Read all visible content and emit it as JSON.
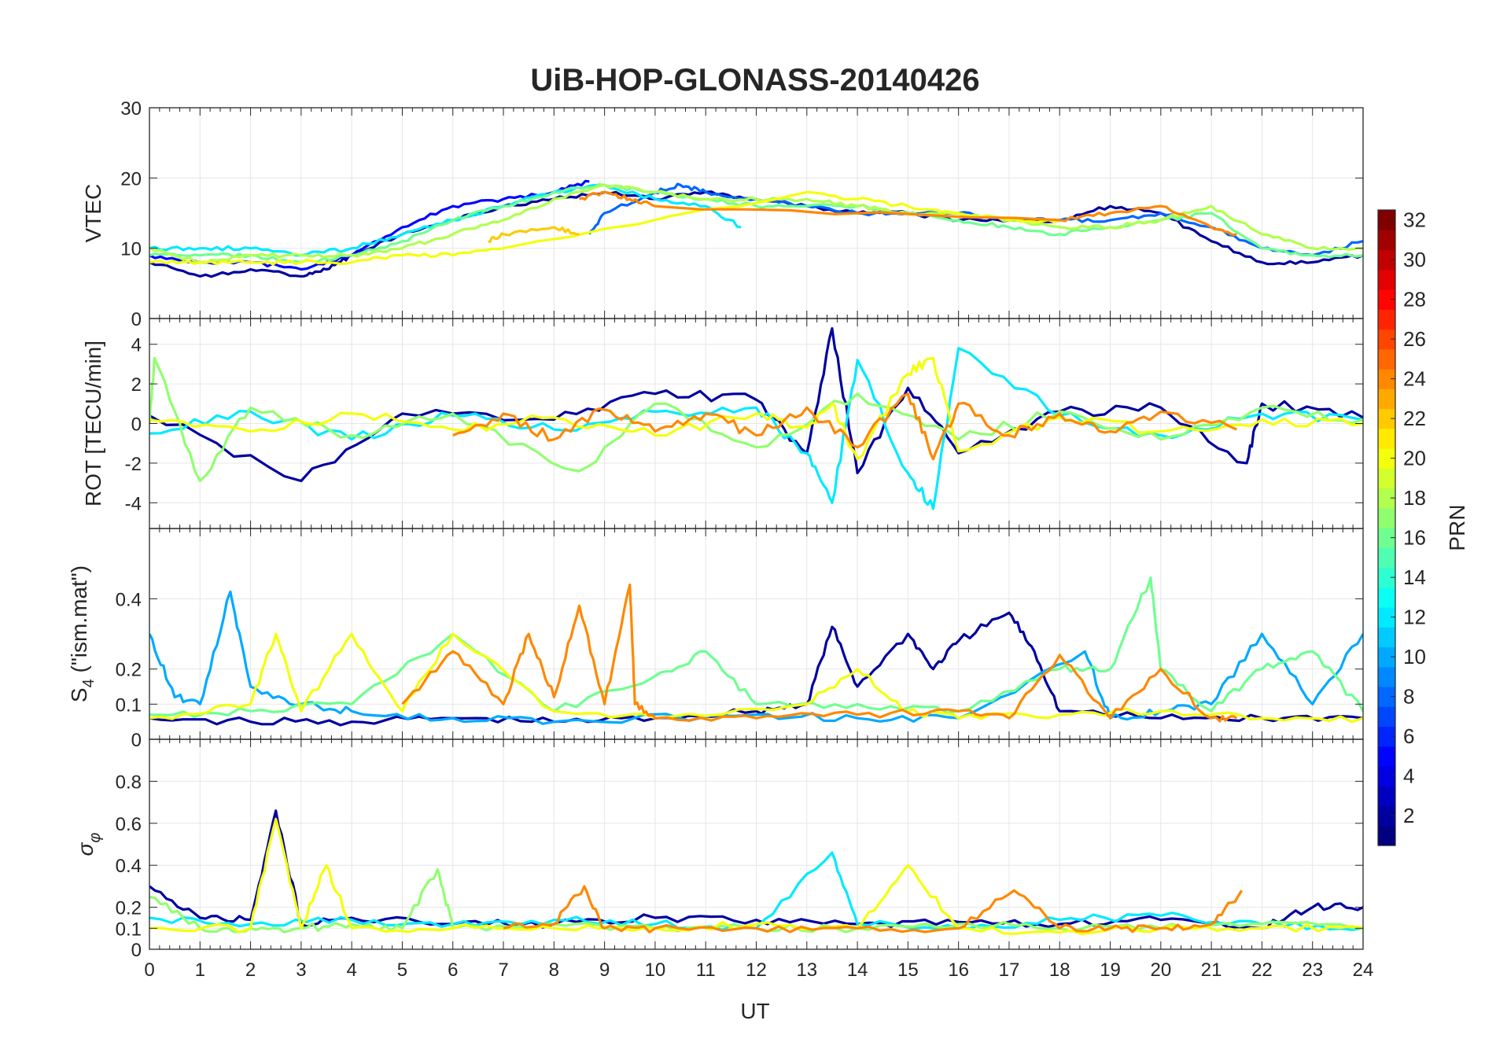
{
  "title": "UiB-HOP-GLONASS-20140426",
  "xlabel": "UT",
  "x_ticks": [
    "0",
    "1",
    "2",
    "3",
    "4",
    "5",
    "6",
    "7",
    "8",
    "9",
    "10",
    "11",
    "12",
    "13",
    "14",
    "15",
    "16",
    "17",
    "18",
    "19",
    "20",
    "21",
    "22",
    "23",
    "24"
  ],
  "colorbar": {
    "label": "PRN",
    "range": [
      1,
      32
    ],
    "colormap": "jet",
    "ticks": [
      "2",
      "4",
      "6",
      "8",
      "10",
      "12",
      "14",
      "16",
      "18",
      "20",
      "22",
      "24",
      "26",
      "28",
      "30",
      "32"
    ]
  },
  "chart_data": [
    {
      "type": "line",
      "panel": "vtec",
      "ylabel": "VTEC",
      "xlim": [
        0,
        24
      ],
      "ylim": [
        0,
        30
      ],
      "yticks": [
        "0",
        "10",
        "20",
        "30"
      ],
      "grid": true,
      "series": [
        {
          "prn": 2,
          "x": [
            0,
            1,
            2,
            3,
            3.5,
            4,
            5,
            6,
            7,
            8,
            9,
            10,
            11,
            12,
            13,
            14,
            15,
            16,
            17,
            18,
            19,
            20,
            21,
            22,
            23,
            24
          ],
          "y": [
            8,
            6,
            7,
            6,
            7,
            9,
            12,
            14,
            16,
            17,
            18,
            17,
            18,
            17,
            16,
            15,
            15,
            14,
            14,
            14,
            16,
            15,
            11,
            8,
            8,
            9
          ]
        },
        {
          "prn": 5,
          "x": [
            0,
            1,
            2,
            3,
            4,
            5,
            6,
            7,
            8,
            8.7
          ],
          "y": [
            9,
            8,
            8,
            7,
            9,
            13,
            16,
            17,
            18,
            19.5
          ]
        },
        {
          "prn": 8,
          "x": [
            8.7,
            9,
            10,
            10.5,
            11,
            12,
            13,
            14,
            15,
            16,
            17,
            18,
            19,
            20,
            21,
            22,
            23,
            24
          ],
          "y": [
            12,
            15,
            18,
            19,
            18,
            17,
            16,
            15,
            15,
            15,
            14,
            14,
            14,
            15,
            13,
            10,
            9,
            11
          ]
        },
        {
          "prn": 12,
          "x": [
            0,
            1,
            2,
            3,
            4,
            5,
            6,
            7,
            8,
            9,
            10,
            11,
            11.7
          ],
          "y": [
            10,
            10,
            10,
            9,
            10,
            12,
            14,
            16,
            18,
            19,
            17,
            16,
            13
          ]
        },
        {
          "prn": 16,
          "x": [
            0,
            1,
            2,
            3,
            4,
            5,
            6,
            7,
            8,
            9,
            10,
            11,
            12,
            13,
            14,
            15,
            16,
            17,
            18,
            19,
            20,
            21,
            22,
            23,
            24
          ],
          "y": [
            9,
            9,
            9,
            8,
            9,
            11,
            14,
            16,
            18,
            19,
            18,
            17,
            16,
            16,
            16,
            15,
            14,
            13,
            12,
            13,
            14,
            15,
            10,
            9,
            9
          ]
        },
        {
          "prn": 18,
          "x": [
            0,
            1,
            2,
            3,
            4,
            5,
            6,
            7,
            8,
            9,
            10,
            11,
            12,
            13,
            14,
            15,
            16,
            17,
            18,
            19,
            20,
            21,
            22,
            23,
            24
          ],
          "y": [
            10,
            8,
            9,
            9,
            9,
            10,
            12,
            14,
            17,
            19,
            18,
            17,
            17,
            17,
            16,
            15,
            15,
            14,
            13,
            13,
            14,
            16,
            12,
            10,
            10
          ]
        },
        {
          "prn": 20,
          "x": [
            0,
            1,
            2,
            3,
            4,
            5,
            6,
            7,
            13,
            14,
            15,
            16,
            17,
            18
          ],
          "y": [
            8,
            8,
            8,
            8,
            8,
            9,
            9,
            10,
            18,
            17,
            16,
            15,
            14,
            14
          ]
        },
        {
          "prn": 22,
          "x": [
            6.7,
            7,
            8,
            8.5
          ],
          "y": [
            11,
            12,
            13,
            12
          ]
        },
        {
          "prn": 24,
          "x": [
            8.5,
            9,
            9.5,
            10,
            18,
            19,
            20,
            21,
            21.5
          ],
          "y": [
            17,
            18,
            17,
            16,
            14,
            15,
            16,
            13,
            12
          ]
        }
      ]
    },
    {
      "type": "line",
      "panel": "rot",
      "ylabel": "ROT [TECU/min]",
      "xlim": [
        0,
        24
      ],
      "ylim": [
        -5.3,
        5.3
      ],
      "yticks": [
        "-4",
        "-2",
        "0",
        "2",
        "4"
      ],
      "grid": true,
      "series": [
        {
          "prn": 2,
          "x": [
            0,
            3,
            5,
            8,
            10,
            12,
            13,
            13.5,
            14,
            15,
            16,
            18,
            20,
            21.7,
            22,
            24
          ],
          "y": [
            0.4,
            -2.9,
            0.5,
            0.2,
            1.5,
            1.2,
            -1.5,
            4.8,
            -2.5,
            1.8,
            -1.5,
            0.6,
            0.8,
            -2.0,
            1.0,
            0.3
          ]
        },
        {
          "prn": 12,
          "x": [
            0,
            2,
            4,
            6,
            8,
            10,
            12,
            13,
            13.5,
            14,
            15,
            15.5,
            16,
            18,
            20,
            22,
            24
          ],
          "y": [
            -0.5,
            0.6,
            -0.8,
            0.4,
            -0.3,
            0.6,
            0.8,
            -1.5,
            -4.0,
            3.2,
            -2.5,
            -4.3,
            3.8,
            0.4,
            -0.6,
            0.5,
            0.2
          ]
        },
        {
          "prn": 17,
          "x": [
            0,
            0.1,
            1,
            2,
            4,
            6,
            8.5,
            10,
            12,
            14,
            16,
            18,
            20,
            22,
            24
          ],
          "y": [
            0,
            3.3,
            -2.9,
            0.8,
            -0.6,
            0.5,
            -2.4,
            1.0,
            -1.2,
            1.5,
            -0.8,
            0.6,
            -0.8,
            0.8,
            0.2
          ]
        },
        {
          "prn": 20,
          "x": [
            0,
            2,
            4,
            6,
            8,
            10,
            12,
            13,
            13.5,
            14,
            15,
            15.5,
            16,
            18,
            20,
            22,
            24
          ],
          "y": [
            0.2,
            -0.4,
            0.5,
            -0.3,
            0.3,
            -0.6,
            0.5,
            -0.2,
            1.0,
            -1.8,
            2.5,
            3.3,
            -1.4,
            0.3,
            -0.4,
            0.2,
            0
          ]
        },
        {
          "prn": 24,
          "x": [
            6,
            7,
            8,
            9,
            10,
            11,
            12,
            13,
            14,
            15,
            15.5,
            16,
            17,
            18,
            19,
            20,
            21.5
          ],
          "y": [
            -0.6,
            0.5,
            -0.8,
            0.7,
            -0.4,
            0.5,
            -0.6,
            0.8,
            -1.2,
            1.5,
            -1.8,
            1.0,
            -0.6,
            0.5,
            -0.4,
            0.6,
            -0.3
          ]
        }
      ]
    },
    {
      "type": "line",
      "panel": "s4",
      "ylabel": "S_4 (\"ism.mat\")",
      "xlim": [
        0,
        24
      ],
      "ylim": [
        0,
        0.6
      ],
      "yticks": [
        "0",
        "0.1",
        "0.2",
        "0.4"
      ],
      "grid": true,
      "series": [
        {
          "prn": 2,
          "x": [
            0,
            2,
            4,
            6,
            8,
            10,
            12,
            13,
            13.5,
            14,
            15,
            15.5,
            16,
            17,
            17.5,
            18,
            20,
            22,
            24
          ],
          "y": [
            0.06,
            0.05,
            0.05,
            0.06,
            0.05,
            0.06,
            0.08,
            0.1,
            0.32,
            0.15,
            0.3,
            0.2,
            0.28,
            0.36,
            0.25,
            0.08,
            0.06,
            0.06,
            0.06
          ]
        },
        {
          "prn": 10,
          "x": [
            0,
            0.5,
            1,
            1.6,
            2,
            3,
            4,
            6,
            8,
            12,
            14,
            16,
            18.5,
            19,
            20,
            21,
            22,
            23,
            24
          ],
          "y": [
            0.3,
            0.12,
            0.1,
            0.42,
            0.15,
            0.1,
            0.08,
            0.06,
            0.05,
            0.07,
            0.06,
            0.06,
            0.25,
            0.06,
            0.08,
            0.1,
            0.3,
            0.1,
            0.3
          ]
        },
        {
          "prn": 16,
          "x": [
            0,
            2,
            4,
            6,
            8,
            10,
            11,
            12,
            14,
            16,
            18,
            19,
            19.8,
            20,
            21,
            22,
            23,
            24
          ],
          "y": [
            0.07,
            0.08,
            0.1,
            0.3,
            0.08,
            0.18,
            0.25,
            0.1,
            0.1,
            0.08,
            0.2,
            0.2,
            0.46,
            0.2,
            0.08,
            0.2,
            0.25,
            0.08
          ]
        },
        {
          "prn": 20,
          "x": [
            0,
            2,
            2.5,
            3,
            4,
            5,
            6,
            8,
            10,
            13,
            14,
            15,
            16,
            18,
            20,
            22,
            24
          ],
          "y": [
            0.06,
            0.1,
            0.3,
            0.08,
            0.3,
            0.08,
            0.3,
            0.08,
            0.06,
            0.1,
            0.2,
            0.08,
            0.06,
            0.07,
            0.08,
            0.06,
            0.06
          ]
        },
        {
          "prn": 24,
          "x": [
            5,
            6,
            7,
            7.5,
            8,
            8.5,
            9,
            9.5,
            9.6,
            10,
            12,
            14,
            16,
            17,
            18,
            19,
            20,
            21,
            21.5
          ],
          "y": [
            0.1,
            0.25,
            0.1,
            0.3,
            0.12,
            0.38,
            0.1,
            0.44,
            0.1,
            0.06,
            0.06,
            0.07,
            0.08,
            0.06,
            0.24,
            0.06,
            0.2,
            0.06,
            0.06
          ]
        }
      ]
    },
    {
      "type": "line",
      "panel": "sigma_phi",
      "ylabel": "σ_φ",
      "xlim": [
        0,
        24
      ],
      "ylim": [
        0,
        1
      ],
      "yticks": [
        "0",
        "0.1",
        "0.2",
        "0.4",
        "0.6",
        "0.8"
      ],
      "grid": true,
      "series": [
        {
          "prn": 2,
          "x": [
            0,
            1,
            2,
            2.5,
            3,
            4,
            6,
            8,
            10,
            12,
            14,
            16,
            18,
            20,
            22,
            23,
            24
          ],
          "y": [
            0.3,
            0.15,
            0.14,
            0.66,
            0.12,
            0.15,
            0.12,
            0.12,
            0.15,
            0.14,
            0.12,
            0.13,
            0.12,
            0.14,
            0.1,
            0.2,
            0.2
          ]
        },
        {
          "prn": 12,
          "x": [
            0,
            2,
            4,
            6,
            8,
            10,
            12,
            13.5,
            14,
            16,
            18,
            20,
            22,
            24
          ],
          "y": [
            0.15,
            0.12,
            0.14,
            0.12,
            0.14,
            0.12,
            0.1,
            0.46,
            0.12,
            0.1,
            0.14,
            0.16,
            0.12,
            0.1
          ]
        },
        {
          "prn": 17,
          "x": [
            0,
            1,
            2,
            3,
            4,
            5,
            5.7,
            6,
            8,
            10,
            12,
            14,
            16,
            18,
            20,
            22,
            24
          ],
          "y": [
            0.25,
            0.1,
            0.1,
            0.1,
            0.12,
            0.1,
            0.38,
            0.1,
            0.12,
            0.1,
            0.1,
            0.1,
            0.12,
            0.1,
            0.1,
            0.12,
            0.1
          ]
        },
        {
          "prn": 20,
          "x": [
            0,
            2,
            2.5,
            3,
            3.5,
            4,
            6,
            8,
            10,
            12,
            14,
            15,
            16,
            18,
            20,
            22,
            24
          ],
          "y": [
            0.1,
            0.1,
            0.62,
            0.1,
            0.4,
            0.1,
            0.1,
            0.1,
            0.1,
            0.12,
            0.1,
            0.4,
            0.1,
            0.08,
            0.1,
            0.1,
            0.1
          ]
        },
        {
          "prn": 24,
          "x": [
            7,
            8,
            8.6,
            9,
            10,
            12,
            14,
            16,
            17.1,
            18,
            19,
            20,
            21,
            21.6
          ],
          "y": [
            0.1,
            0.12,
            0.3,
            0.1,
            0.1,
            0.1,
            0.1,
            0.1,
            0.28,
            0.1,
            0.1,
            0.1,
            0.12,
            0.28
          ]
        }
      ]
    }
  ]
}
